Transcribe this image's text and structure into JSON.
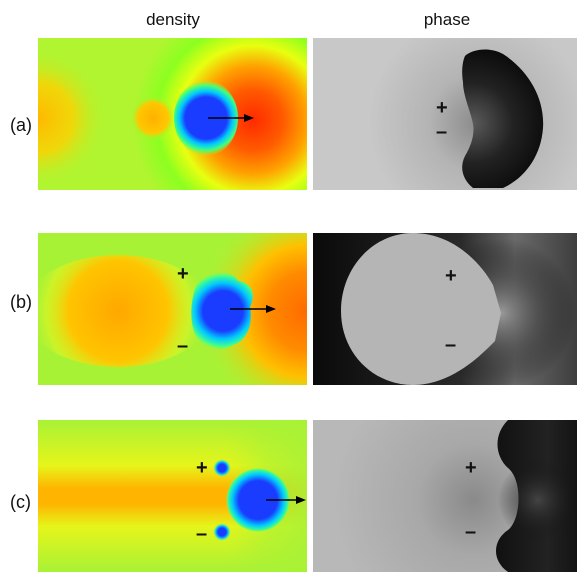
{
  "headers": {
    "density": "density",
    "phase": "phase"
  },
  "rows": [
    {
      "label": "(a)",
      "density_signs": [],
      "phase_signs": [
        "+",
        "–"
      ]
    },
    {
      "label": "(b)",
      "density_signs": [
        "+",
        "–"
      ],
      "phase_signs": [
        "+",
        "–"
      ]
    },
    {
      "label": "(c)",
      "density_signs": [
        "+",
        "–"
      ],
      "phase_signs": [
        "+",
        "–"
      ]
    }
  ]
}
